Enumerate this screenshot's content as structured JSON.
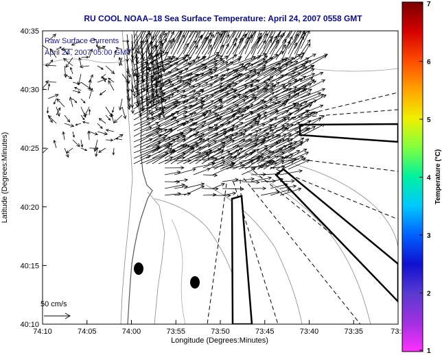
{
  "title": "RU COOL  NOAA–18  Sea Surface Temperature:  April 24, 2007 0558 GMT",
  "overlay": {
    "line1": "Raw Surface Currents",
    "line2": "April 24, 2007 05:00 GMT"
  },
  "axes": {
    "xlabel": "Longitude (Degrees:Minutes)",
    "ylabel": "Latitude (Degrees:Minutes)",
    "xticks": [
      "74:10",
      "74:05",
      "74:00",
      "73:55",
      "73:50",
      "73:45",
      "73:40",
      "73:35",
      "73:3"
    ],
    "yticks": [
      "40:35",
      "40:30",
      "40:25",
      "40:20",
      "40:15",
      "40:10"
    ]
  },
  "scale_label": "50 cm/s",
  "colorbar": {
    "label": "Temperature (°C)",
    "ticks": [
      "7",
      "6",
      "5",
      "4",
      "3",
      "2",
      "1"
    ],
    "colors": [
      "#7a0000",
      "#d40000",
      "#ff4a00",
      "#ffa200",
      "#f0f000",
      "#80ff40",
      "#00f0a0",
      "#00c8ff",
      "#0060ff",
      "#1010d0",
      "#5a3ad0",
      "#a030e0",
      "#ff30ff"
    ]
  }
}
